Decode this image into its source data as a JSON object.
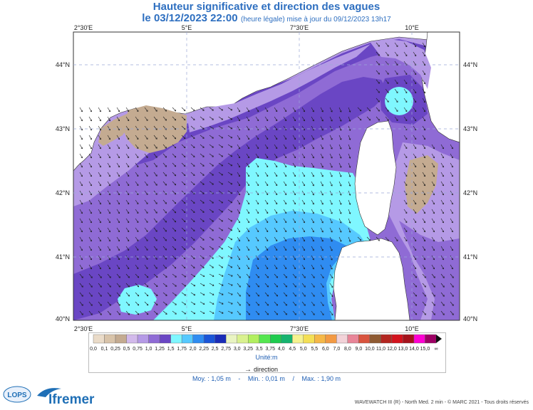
{
  "header": {
    "title": "Hauteur significative et direction des vagues",
    "date": "le 03/12/2023 22:00",
    "update": "(heure légale) mise à jour du 09/12/2023 13h17"
  },
  "map": {
    "lon_ticks": [
      "2°30'E",
      "5°E",
      "7°30'E",
      "10°E"
    ],
    "lat_ticks": [
      "44°N",
      "43°N",
      "42°N",
      "41°N",
      "40°N"
    ]
  },
  "legend": {
    "labels": [
      "0,0",
      "0,1",
      "0,25",
      "0,5",
      "0,75",
      "1,0",
      "1,25",
      "1,5",
      "1,75",
      "2,0",
      "2,25",
      "2,5",
      "2,75",
      "3,0",
      "3,25",
      "3,5",
      "3,75",
      "4,0",
      "4,5",
      "5,0",
      "5,5",
      "6,0",
      "7,0",
      "8,0",
      "9,0",
      "10,0",
      "11,0",
      "12,0",
      "13,0",
      "14,0",
      "15,0",
      "∞"
    ],
    "colors": [
      "#eadbc8",
      "#d8c3a9",
      "#c4ab91",
      "#d2b9eb",
      "#b59ae6",
      "#8f6bd5",
      "#6a46c4",
      "#7ff7ff",
      "#56c9ff",
      "#2f8cf1",
      "#1b55d8",
      "#1a2cb7",
      "#e9f4c2",
      "#d9f18f",
      "#b2ef5f",
      "#55e64f",
      "#1ecb4e",
      "#16b36f",
      "#f6f38f",
      "#f4df55",
      "#f6b847",
      "#f39a43",
      "#f2d2d8",
      "#e88598",
      "#d9543e",
      "#8f5a32",
      "#b32620",
      "#d3121c",
      "#a5121b",
      "#ff00d3",
      "#9d0064"
    ],
    "unit": "Unité:m",
    "direction": "direction"
  },
  "stats": {
    "moy": "Moy. : 1,05 m",
    "min": "Min. : 0,01 m",
    "max": "Max. : 1,90 m"
  },
  "footer": {
    "credits": "WAVEWATCH III (R) - North Med. 2 min - © MARC 2021 - Tous droits réservés",
    "logo_text": "Ifremer",
    "lops_text": "LOPS"
  }
}
